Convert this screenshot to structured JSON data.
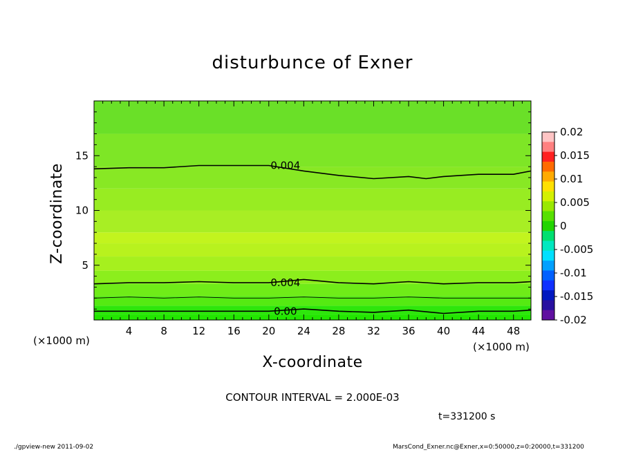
{
  "chart_data": {
    "type": "heatmap",
    "title": "disturbunce of Exner",
    "xlabel": "X-coordinate",
    "ylabel": "Z-coordinate",
    "x_unit_left": "(×1000 m)",
    "x_unit_right": "(×1000 m)",
    "xlim": [
      0,
      50
    ],
    "ylim": [
      0,
      20
    ],
    "x_ticks": [
      4,
      8,
      12,
      16,
      20,
      24,
      28,
      32,
      36,
      40,
      44,
      48
    ],
    "y_ticks": [
      5,
      10,
      15
    ],
    "bands": [
      {
        "z_range": [
          0,
          0.5
        ],
        "value": 0.0005,
        "color": "#22e600"
      },
      {
        "z_range": [
          0.5,
          1.3
        ],
        "value": 0.0015,
        "color": "#2ee60c"
      },
      {
        "z_range": [
          1.3,
          2.2
        ],
        "value": 0.0025,
        "color": "#55ea12"
      },
      {
        "z_range": [
          2.2,
          3.3
        ],
        "value": 0.0035,
        "color": "#6fec18"
      },
      {
        "z_range": [
          3.3,
          4.5
        ],
        "value": 0.0045,
        "color": "#8cee1c"
      },
      {
        "z_range": [
          4.5,
          5.8
        ],
        "value": 0.0052,
        "color": "#a6f01e"
      },
      {
        "z_range": [
          5.8,
          7.0
        ],
        "value": 0.0056,
        "color": "#b8f21e"
      },
      {
        "z_range": [
          7.0,
          8.0
        ],
        "value": 0.0058,
        "color": "#c2f41e"
      },
      {
        "z_range": [
          8.0,
          10.0
        ],
        "value": 0.0054,
        "color": "#a8ee24"
      },
      {
        "z_range": [
          10.0,
          12.0
        ],
        "value": 0.005,
        "color": "#98ec22"
      },
      {
        "z_range": [
          12.0,
          14.0
        ],
        "value": 0.0045,
        "color": "#88e824"
      },
      {
        "z_range": [
          14.0,
          17.0
        ],
        "value": 0.004,
        "color": "#7ee626"
      },
      {
        "z_range": [
          17.0,
          20.0
        ],
        "value": 0.0032,
        "color": "#6ae028"
      }
    ],
    "contours": [
      {
        "label": "0.004",
        "label_x": 20,
        "points": [
          [
            0,
            13.8
          ],
          [
            4,
            13.9
          ],
          [
            8,
            13.9
          ],
          [
            12,
            14.1
          ],
          [
            16,
            14.1
          ],
          [
            20,
            14.1
          ],
          [
            24,
            13.6
          ],
          [
            28,
            13.2
          ],
          [
            32,
            12.9
          ],
          [
            36,
            13.1
          ],
          [
            38,
            12.9
          ],
          [
            40,
            13.1
          ],
          [
            44,
            13.3
          ],
          [
            48,
            13.3
          ],
          [
            50,
            13.6
          ]
        ]
      },
      {
        "label": "0.004",
        "label_x": 20,
        "points": [
          [
            0,
            3.3
          ],
          [
            4,
            3.4
          ],
          [
            8,
            3.4
          ],
          [
            12,
            3.5
          ],
          [
            16,
            3.4
          ],
          [
            20,
            3.4
          ],
          [
            24,
            3.7
          ],
          [
            28,
            3.4
          ],
          [
            32,
            3.3
          ],
          [
            36,
            3.5
          ],
          [
            40,
            3.3
          ],
          [
            44,
            3.4
          ],
          [
            48,
            3.4
          ],
          [
            50,
            3.5
          ]
        ]
      },
      {
        "label": "",
        "label_x": null,
        "points": [
          [
            0,
            2.0
          ],
          [
            4,
            2.1
          ],
          [
            8,
            2.0
          ],
          [
            12,
            2.1
          ],
          [
            16,
            2.0
          ],
          [
            20,
            2.0
          ],
          [
            24,
            2.1
          ],
          [
            28,
            2.0
          ],
          [
            32,
            2.0
          ],
          [
            36,
            2.1
          ],
          [
            40,
            2.0
          ],
          [
            44,
            2.0
          ],
          [
            48,
            2.0
          ],
          [
            50,
            2.0
          ]
        ]
      },
      {
        "label": "0.00",
        "label_x": 20,
        "points": [
          [
            0,
            0.8
          ],
          [
            4,
            0.8
          ],
          [
            8,
            0.8
          ],
          [
            12,
            0.8
          ],
          [
            16,
            0.8
          ],
          [
            20,
            0.8
          ],
          [
            24,
            1.0
          ],
          [
            28,
            0.8
          ],
          [
            32,
            0.7
          ],
          [
            36,
            0.9
          ],
          [
            40,
            0.6
          ],
          [
            44,
            0.8
          ],
          [
            48,
            0.8
          ],
          [
            50,
            0.9
          ]
        ]
      }
    ],
    "colorbar": {
      "levels": [
        {
          "value": "0.02",
          "color": "#ff9a9a"
        },
        {
          "value": "0.015",
          "color": "#ff3a3a"
        },
        {
          "value": "0.01",
          "color": "#ff8a00"
        },
        {
          "value": "0.005",
          "color": "#d8f000"
        },
        {
          "value": "0",
          "color": "#22e000"
        },
        {
          "value": "-0.005",
          "color": "#00e8a0"
        },
        {
          "value": "-0.01",
          "color": "#00b0ff"
        },
        {
          "value": "-0.015",
          "color": "#1020ff"
        },
        {
          "value": "-0.02",
          "color": "#6020b0"
        }
      ],
      "segment_colors": [
        "#ffc4c4",
        "#ff8080",
        "#ff2020",
        "#ff6a00",
        "#ffaa00",
        "#ffe000",
        "#d4f000",
        "#9ae800",
        "#58e000",
        "#22d400",
        "#00e070",
        "#00e8c0",
        "#00e0ff",
        "#00a0ff",
        "#0060ff",
        "#1030ff",
        "#0018c0",
        "#2810a0",
        "#6010a0"
      ],
      "labels": [
        "0.02",
        "0.015",
        "0.01",
        "0.005",
        "0",
        "-0.005",
        "-0.01",
        "-0.015",
        "-0.02"
      ]
    }
  },
  "annotation": {
    "contour_interval": "CONTOUR INTERVAL = 2.000E-03",
    "time": "t=331200  s"
  },
  "footer": {
    "left": "./gpview-new   2011-09-02",
    "right": "MarsCond_Exner.nc@Exner,x=0:50000,z=0:20000,t=331200"
  }
}
